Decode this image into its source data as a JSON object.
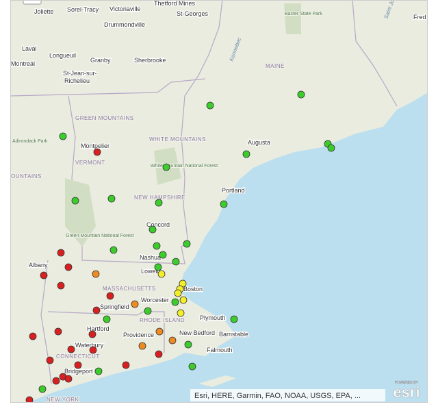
{
  "map": {
    "labels": [
      "Joliette",
      "Sorel-Tracy",
      "Victoriaville",
      "Thetford Mines",
      "St-Georges",
      "Drummondville",
      "Laval",
      "Longueuil",
      "Montreal",
      "Granby",
      "Sherbrooke",
      "St-Jean-sur-",
      "Richelieu",
      "MAINE",
      "Baxter State Park",
      "GREEN MOUNTAINS",
      "WHITE MOUNTAINS",
      "Adirondack Park",
      "Montpelier",
      "VERMONT",
      "Augusta",
      "Portland",
      "NEW HAMPSHIRE",
      "White Mountain National Forest",
      "Concord",
      "Green Mountain National Forest",
      "Nashua",
      "Lowell",
      "Boston",
      "MASSACHUSETTS",
      "Albany",
      "Worcester",
      "Springfield",
      "Hartford",
      "RHODE ISLAND",
      "Providence",
      "Plymouth",
      "Barnstable",
      "New Bedford",
      "Falmouth",
      "Waterbury",
      "CONNECTICUT",
      "Bridgeport",
      "NEW YORK",
      "Kennebec",
      "Saint John",
      "Fred",
      "OUNTAINS"
    ],
    "attribution": "Esri, HERE, Garmin, FAO, NOAA, USGS, EPA, ...",
    "logo": "esri",
    "logo_caption": "POWERED BY"
  }
}
